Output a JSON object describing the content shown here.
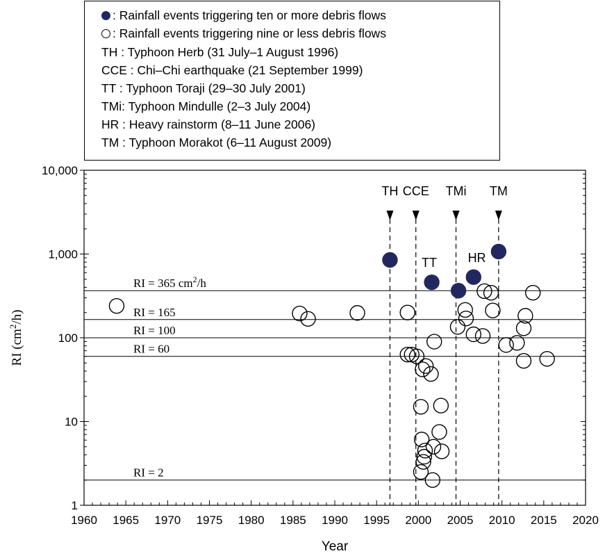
{
  "legend": {
    "filled_label": ": Rainfall events triggering ten or more debris flows",
    "open_label": ": Rainfall events triggering nine or less debris flows",
    "events": [
      "TH : Typhoon Herb (31 July–1 August 1996)",
      "CCE : Chi–Chi earthquake (21 September 1999)",
      "TT  : Typhoon Toraji (29–30 July 2001)",
      "TMi: Typhoon Mindulle (2–3 July 2004)",
      "HR : Heavy rainstorm (8–11 June 2006)",
      "TM : Typhoon Morakot (6–11 August 2009)"
    ]
  },
  "colors": {
    "filled": "#22285f",
    "line": "#000000"
  },
  "chart_data": {
    "type": "scatter",
    "xlabel": "Year",
    "ylabel": "RI (cm2/h)",
    "ylabel_main": "RI (cm",
    "ylabel_sup": "2",
    "ylabel_tail": "/h)",
    "xlim": [
      1960,
      2020
    ],
    "ylim": [
      1,
      10000
    ],
    "yscale": "log",
    "x_ticks": [
      "1960",
      "1965",
      "1970",
      "1975",
      "1980",
      "1985",
      "1990",
      "1995",
      "2000",
      "2005",
      "2010",
      "2015",
      "2020"
    ],
    "y_ticks": [
      {
        "value": 1,
        "label": "1"
      },
      {
        "value": 10,
        "label": "10"
      },
      {
        "value": 100,
        "label": "100"
      },
      {
        "value": 1000,
        "label": "1,000"
      },
      {
        "value": 10000,
        "label": "10,000"
      }
    ],
    "thresholds": [
      {
        "value": 365,
        "label": "RI = 365 cm",
        "sup": "2",
        "tail": "/h"
      },
      {
        "value": 165,
        "label": "RI = 165"
      },
      {
        "value": 100,
        "label": "RI = 100"
      },
      {
        "value": 60,
        "label": "RI = 60"
      },
      {
        "value": 2,
        "label": "RI = 2"
      }
    ],
    "events": [
      {
        "label": "TH",
        "x": 1996.6
      },
      {
        "label": "CCE",
        "x": 1999.7
      },
      {
        "label": "TMi",
        "x": 2004.5
      },
      {
        "label": "TM",
        "x": 2009.6
      }
    ],
    "point_labels": [
      {
        "label": "TT",
        "x": 2001.3,
        "y": 700
      },
      {
        "label": "HR",
        "x": 2007.0,
        "y": 800
      }
    ],
    "series": [
      {
        "marker": "filled",
        "points": [
          {
            "x": 1996.6,
            "y": 850
          },
          {
            "x": 2001.6,
            "y": 460
          },
          {
            "x": 2004.8,
            "y": 365
          },
          {
            "x": 2006.6,
            "y": 530
          },
          {
            "x": 2009.6,
            "y": 1070
          }
        ]
      },
      {
        "marker": "open",
        "points": [
          {
            "x": 1963.9,
            "y": 240
          },
          {
            "x": 1985.8,
            "y": 195
          },
          {
            "x": 1986.8,
            "y": 168
          },
          {
            "x": 1992.7,
            "y": 198
          },
          {
            "x": 1998.7,
            "y": 200
          },
          {
            "x": 1998.7,
            "y": 63
          },
          {
            "x": 1999.2,
            "y": 63
          },
          {
            "x": 1999.8,
            "y": 60
          },
          {
            "x": 2000.5,
            "y": 42
          },
          {
            "x": 2000.9,
            "y": 46
          },
          {
            "x": 2001.5,
            "y": 37
          },
          {
            "x": 2001.9,
            "y": 90
          },
          {
            "x": 2000.3,
            "y": 15
          },
          {
            "x": 2002.7,
            "y": 15.5
          },
          {
            "x": 2000.4,
            "y": 6.1
          },
          {
            "x": 2000.8,
            "y": 4.5
          },
          {
            "x": 2000.7,
            "y": 3.8
          },
          {
            "x": 2000.6,
            "y": 3.3
          },
          {
            "x": 2001.8,
            "y": 5.0
          },
          {
            "x": 2002.5,
            "y": 7.5
          },
          {
            "x": 2002.8,
            "y": 4.4
          },
          {
            "x": 2000.3,
            "y": 2.5
          },
          {
            "x": 2001.7,
            "y": 2.0
          },
          {
            "x": 2004.7,
            "y": 135
          },
          {
            "x": 2005.6,
            "y": 215
          },
          {
            "x": 2005.7,
            "y": 170
          },
          {
            "x": 2006.6,
            "y": 110
          },
          {
            "x": 2007.7,
            "y": 105
          },
          {
            "x": 2007.9,
            "y": 360
          },
          {
            "x": 2008.7,
            "y": 345
          },
          {
            "x": 2008.9,
            "y": 212
          },
          {
            "x": 2010.5,
            "y": 82
          },
          {
            "x": 2011.8,
            "y": 87
          },
          {
            "x": 2012.6,
            "y": 53
          },
          {
            "x": 2012.6,
            "y": 130
          },
          {
            "x": 2012.8,
            "y": 183
          },
          {
            "x": 2013.7,
            "y": 345
          },
          {
            "x": 2015.4,
            "y": 56
          }
        ]
      }
    ]
  }
}
